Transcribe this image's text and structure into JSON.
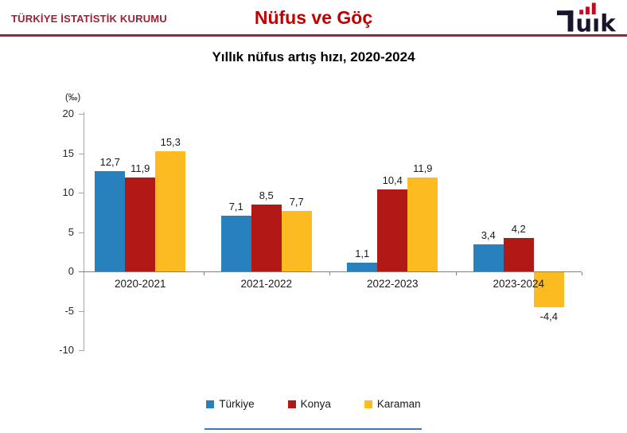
{
  "header": {
    "org": "TÜRKİYE İSTATİSTİK KURUMU",
    "title": "Nüfus ve Göç",
    "logo": "tüik"
  },
  "colors": {
    "maroon": "#9D2235",
    "title_red": "#C00000",
    "axis_gray": "#A6A6A6",
    "zero_line_gray": "#808080",
    "footer_accent": "#4472C4",
    "logo_dark": "#17152E",
    "logo_red": "#C00D1E"
  },
  "chart_data": {
    "type": "bar",
    "title": "Yıllık nüfus artış hızı, 2020-2024",
    "unit_label": "(‰)",
    "categories": [
      "2020-2021",
      "2021-2022",
      "2022-2023",
      "2023-2024"
    ],
    "series": [
      {
        "name": "Türkiye",
        "color": "#2880BD",
        "values": [
          12.7,
          7.1,
          1.1,
          3.4
        ]
      },
      {
        "name": "Konya",
        "color": "#B11917",
        "values": [
          11.9,
          8.5,
          10.4,
          4.2
        ]
      },
      {
        "name": "Karaman",
        "color": "#FBBB21",
        "values": [
          15.3,
          7.7,
          11.9,
          -4.4
        ]
      }
    ],
    "value_label_format": "comma-decimal",
    "y_ticks": [
      20,
      15,
      10,
      5,
      0,
      -5,
      -10
    ],
    "ylim": [
      -10,
      20
    ],
    "grid": false,
    "legend_position": "bottom"
  }
}
